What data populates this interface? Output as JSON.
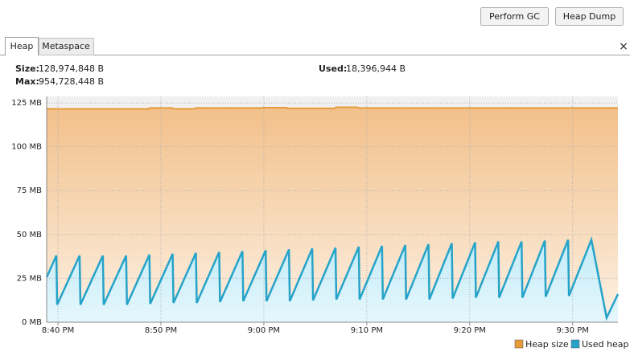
{
  "toolbar": {
    "buttons": [
      "Perform GC",
      "Heap Dump"
    ]
  },
  "tabs": {
    "items": [
      "Heap",
      "Metaspace"
    ],
    "close": "×"
  },
  "stats": {
    "size_label": "Size:",
    "size": "128,974,848 B",
    "max_label": "Max:",
    "max": "954,728,448 B",
    "used_label": "Used:",
    "used": "18,396,944 B"
  },
  "chart_data": {
    "type": "line",
    "xlim": [
      1238.9,
      1294.4
    ],
    "ylim": [
      0,
      128.7
    ],
    "xticks": [
      {
        "value": 1240,
        "label": "8:40 PM"
      },
      {
        "value": 1250,
        "label": "8:50 PM"
      },
      {
        "value": 1260,
        "label": "9:00 PM"
      },
      {
        "value": 1270,
        "label": "9:10 PM"
      },
      {
        "value": 1280,
        "label": "9:20 PM"
      },
      {
        "value": 1290,
        "label": "9:30 PM"
      }
    ],
    "yticks": [
      {
        "value": 0,
        "label": "0 MB"
      },
      {
        "value": 25,
        "label": "25 MB"
      },
      {
        "value": 50,
        "label": "50 MB"
      },
      {
        "value": 75,
        "label": "75 MB"
      },
      {
        "value": 100,
        "label": "100 MB"
      },
      {
        "value": 125,
        "label": "125 MB"
      }
    ],
    "grid": true,
    "legend": "bottom-right",
    "series": [
      {
        "name": "Heap size",
        "color": "#e69a3a",
        "fill": "#f2c08a",
        "x": [
          1238.9,
          1248.8,
          1248.9,
          1251.1,
          1251.2,
          1253.3,
          1253.4,
          1259.9,
          1260.0,
          1262.2,
          1262.3,
          1266.9,
          1267.0,
          1269.1,
          1269.2,
          1294.4
        ],
        "values": [
          121.6,
          121.6,
          122.1,
          122.1,
          121.6,
          121.6,
          122.1,
          122.1,
          122.3,
          122.3,
          121.9,
          121.9,
          122.5,
          122.5,
          122.1,
          122.1
        ]
      },
      {
        "name": "Used heap",
        "color": "#26a3c9",
        "fill": "#cdeef8",
        "x": [
          1238.9,
          1239.84,
          1239.92,
          1242.1,
          1242.18,
          1244.36,
          1244.44,
          1246.62,
          1246.7,
          1248.88,
          1248.96,
          1251.14,
          1251.22,
          1253.4,
          1253.48,
          1255.66,
          1255.74,
          1257.92,
          1258.0,
          1260.18,
          1260.26,
          1262.44,
          1262.52,
          1264.7,
          1264.78,
          1266.96,
          1267.04,
          1269.22,
          1269.3,
          1271.48,
          1271.56,
          1273.74,
          1273.82,
          1276.0,
          1276.08,
          1278.26,
          1278.34,
          1280.52,
          1280.6,
          1282.78,
          1282.86,
          1285.04,
          1285.12,
          1287.3,
          1287.38,
          1289.56,
          1289.64,
          1291.82,
          1293.3,
          1294.4
        ],
        "values": [
          25.6,
          38,
          10,
          38,
          10,
          38,
          10,
          38,
          10,
          38.5,
          10.5,
          39,
          11,
          39.5,
          11,
          40,
          11.5,
          40.5,
          12,
          41,
          12,
          41.5,
          12,
          42,
          12.5,
          42.5,
          13,
          43,
          13,
          43.5,
          13,
          44,
          13,
          44.5,
          13,
          45,
          13.5,
          45.5,
          14,
          46,
          14,
          46,
          14,
          46.5,
          14.5,
          47,
          15,
          47,
          2.5,
          16
        ]
      }
    ]
  }
}
